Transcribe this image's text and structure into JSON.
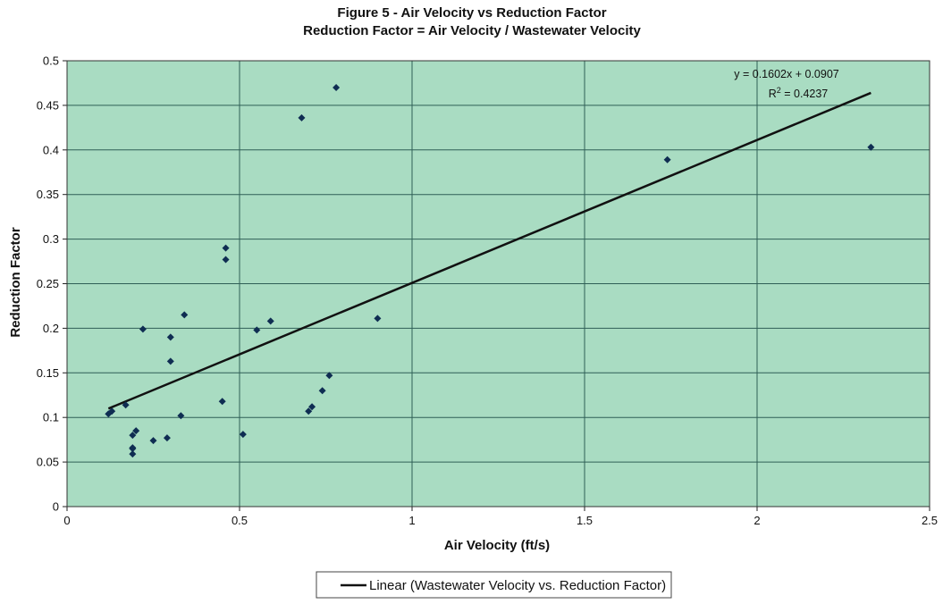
{
  "chart_data": {
    "type": "scatter",
    "title": "Figure 5 - Air Velocity vs Reduction Factor",
    "subtitle": "Reduction Factor = Air Velocity / Wastewater Velocity",
    "xlabel": "Air Velocity (ft/s)",
    "ylabel": "Reduction Factor",
    "xlim": [
      0,
      2.5
    ],
    "ylim": [
      0,
      0.5
    ],
    "x_ticks": [
      0,
      0.5,
      1,
      1.5,
      2,
      2.5
    ],
    "x_tick_labels": [
      "0",
      "0.5",
      "1",
      "1.5",
      "2",
      "2.5"
    ],
    "y_ticks": [
      0,
      0.05,
      0.1,
      0.15,
      0.2,
      0.25,
      0.3,
      0.35,
      0.4,
      0.45,
      0.5
    ],
    "y_tick_labels": [
      "0",
      "0.05",
      "0.1",
      "0.15",
      "0.2",
      "0.25",
      "0.3",
      "0.35",
      "0.4",
      "0.45",
      "0.5"
    ],
    "grid": true,
    "plot_background": "#a9dcc2",
    "marker_color": "#0f2d52",
    "trendline_color": "#111111",
    "series": [
      {
        "points": [
          [
            0.12,
            0.104
          ],
          [
            0.13,
            0.107
          ],
          [
            0.17,
            0.114
          ],
          [
            0.19,
            0.059
          ],
          [
            0.19,
            0.066
          ],
          [
            0.19,
            0.065
          ],
          [
            0.19,
            0.08
          ],
          [
            0.2,
            0.085
          ],
          [
            0.22,
            0.199
          ],
          [
            0.25,
            0.074
          ],
          [
            0.29,
            0.077
          ],
          [
            0.3,
            0.163
          ],
          [
            0.3,
            0.19
          ],
          [
            0.33,
            0.102
          ],
          [
            0.34,
            0.215
          ],
          [
            0.45,
            0.118
          ],
          [
            0.46,
            0.29
          ],
          [
            0.46,
            0.277
          ],
          [
            0.51,
            0.081
          ],
          [
            0.55,
            0.198
          ],
          [
            0.59,
            0.208
          ],
          [
            0.68,
            0.436
          ],
          [
            0.7,
            0.107
          ],
          [
            0.71,
            0.112
          ],
          [
            0.74,
            0.13
          ],
          [
            0.76,
            0.147
          ],
          [
            0.78,
            0.47
          ],
          [
            0.9,
            0.211
          ],
          [
            1.74,
            0.389
          ],
          [
            2.33,
            0.403
          ]
        ]
      }
    ],
    "trendline": {
      "type": "linear",
      "slope": 0.1602,
      "intercept": 0.0907,
      "x_range": [
        0.12,
        2.33
      ],
      "equation_label": "y = 0.1602x + 0.0907",
      "r2_prefix": "R",
      "r2_sup": "2",
      "r2_value": " = 0.4237"
    },
    "legend": {
      "position": "bottom-center",
      "entries": [
        "Linear (Wastewater Velocity vs. Reduction Factor)"
      ]
    }
  }
}
